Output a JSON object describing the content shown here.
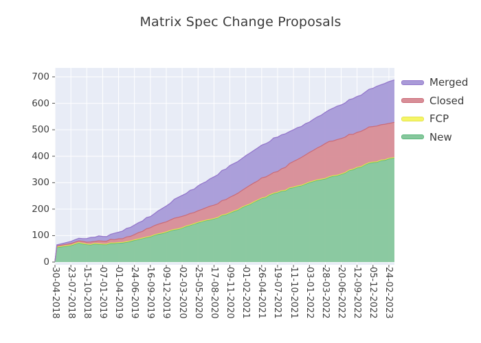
{
  "chart_data": {
    "type": "area",
    "stacked": true,
    "title": "Matrix Spec Change Proposals",
    "xlabel": "",
    "ylabel": "",
    "ylim": [
      0,
      700
    ],
    "grid": "white gridlines on light blue-grey panel",
    "legend_position": "outside-right-top",
    "legend": [
      "Merged",
      "Closed",
      "FCP",
      "New"
    ],
    "plot_bg": "#e8ecf6",
    "grid_color": "#ffffff",
    "tick_color": "#3c3c3c",
    "title_color": "#3a3a3a",
    "y_ticks": [
      0,
      100,
      200,
      300,
      400,
      500,
      600,
      700
    ],
    "x_tick_labels": [
      "30-04-2018",
      "23-07-2018",
      "15-10-2018",
      "07-01-2019",
      "01-04-2019",
      "24-06-2019",
      "16-09-2019",
      "09-12-2019",
      "02-03-2020",
      "25-05-2020",
      "17-08-2020",
      "09-11-2020",
      "01-02-2021",
      "26-04-2021",
      "19-07-2021",
      "11-10-2021",
      "03-01-2022",
      "28-03-2022",
      "20-06-2022",
      "12-09-2022",
      "05-12-2022",
      "24-02-2023"
    ],
    "x": [
      0,
      0.12,
      1,
      1.5,
      2,
      3,
      4,
      5,
      6,
      7,
      8,
      9,
      10,
      11,
      12,
      13,
      14,
      15,
      16,
      17,
      18,
      19,
      20,
      21,
      21.35
    ],
    "series": [
      {
        "name": "New",
        "fill": "#87c79d",
        "line": "#59b87a",
        "values": [
          2,
          55,
          62,
          72,
          66,
          66,
          72,
          82,
          95,
          112,
          128,
          148,
          163,
          185,
          212,
          240,
          262,
          281,
          300,
          314,
          331,
          356,
          376,
          390,
          393
        ]
      },
      {
        "name": "FCP",
        "fill": "#f5f566",
        "line": "#e3e34e",
        "values": [
          1,
          2,
          2,
          2,
          2,
          2,
          2,
          2,
          2,
          2,
          2,
          2,
          2,
          2,
          2,
          2,
          2,
          2,
          2,
          2,
          2,
          2,
          2,
          2,
          2
        ]
      },
      {
        "name": "Closed",
        "fill": "#d88e97",
        "line": "#ca6a77",
        "values": [
          0,
          4,
          6,
          6,
          7,
          11,
          14,
          20,
          33,
          38,
          43,
          44,
          50,
          58,
          66,
          76,
          78,
          97,
          112,
          132,
          134,
          132,
          134,
          132,
          133
        ]
      },
      {
        "name": "Merged",
        "fill": "#a99bd8",
        "line": "#9173ca",
        "values": [
          0,
          4,
          8,
          10,
          14,
          18,
          25,
          36,
          42,
          60,
          79,
          94,
          107,
          120,
          122,
          124,
          130,
          120,
          115,
          118,
          127,
          136,
          145,
          158,
          160
        ]
      }
    ]
  }
}
